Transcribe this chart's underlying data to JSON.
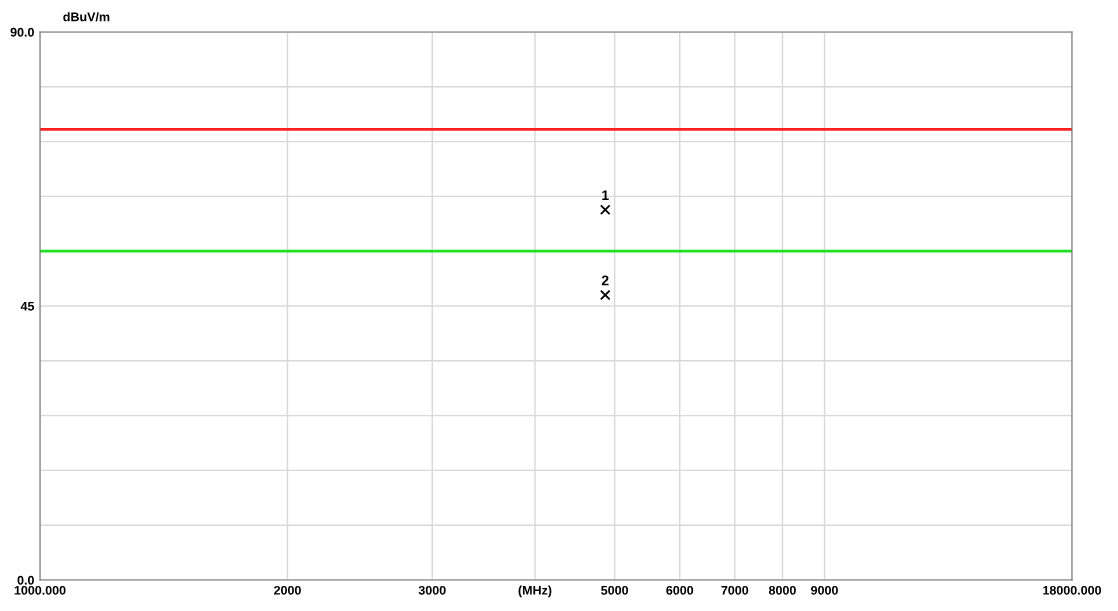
{
  "chart_data": {
    "type": "scatter",
    "ylabel": "dBuV/m",
    "xlabel": "(MHz)",
    "log": "x",
    "series": [
      {
        "color": "#000000",
        "x": [
          4870,
          4870
        ],
        "values": [
          60.8,
          46.8
        ]
      }
    ],
    "annotations": [
      {
        "text": "1",
        "x": 4870,
        "y": 60.8
      },
      {
        "text": "2",
        "x": 4870,
        "y": 46.8
      }
    ],
    "marker": "cross",
    "xlim": [
      1000,
      18000
    ],
    "xticks": [
      {
        "value": 1000,
        "label": "1000.000"
      },
      2000,
      3000,
      {
        "value": 4000,
        "label": null
      },
      5000,
      6000,
      7000,
      8000,
      9000,
      {
        "value": 18000,
        "label": "18000.000"
      }
    ],
    "ylim": [
      0,
      90
    ],
    "yticks": [
      {
        "value": 0,
        "label": "0.0"
      },
      {
        "value": 9,
        "label": null
      },
      {
        "value": 18,
        "label": null
      },
      {
        "value": 27,
        "label": null
      },
      {
        "value": 36,
        "label": null
      },
      45,
      {
        "value": 54,
        "label": null
      },
      {
        "value": 63,
        "label": null
      },
      {
        "value": 72,
        "label": null
      },
      {
        "value": 81,
        "label": null
      },
      {
        "value": 90,
        "label": "90.0"
      }
    ],
    "grid": true,
    "ref_lines": [
      {
        "axis": "y",
        "value": 74,
        "color": "#ff2020"
      },
      {
        "axis": "y",
        "value": 54,
        "color": "#20e020"
      }
    ]
  }
}
